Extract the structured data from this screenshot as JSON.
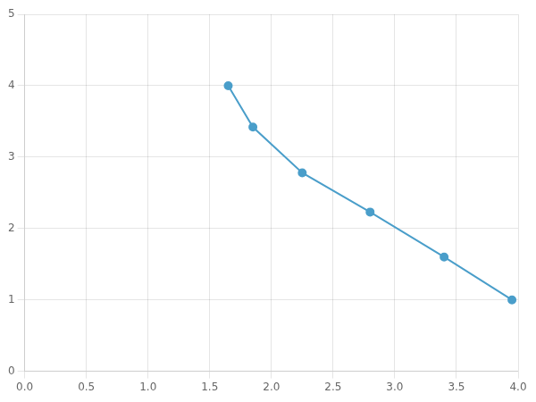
{
  "chart_data": {
    "type": "line",
    "x": [
      1.65,
      1.85,
      2.25,
      2.8,
      3.4,
      3.95
    ],
    "values": [
      4.0,
      3.42,
      2.78,
      2.23,
      1.6,
      1.0
    ],
    "color": "#4a9eca",
    "marker": "circle",
    "xlim": [
      0.0,
      4.0
    ],
    "ylim": [
      0,
      5
    ],
    "xticks": [
      {
        "value": 0.0,
        "label": "0.0"
      },
      0.5,
      {
        "value": 1.0,
        "label": "1.0"
      },
      1.5,
      {
        "value": 2.0,
        "label": "2.0"
      },
      2.5,
      {
        "value": 3.0,
        "label": "3.0"
      },
      3.5,
      {
        "value": 4.0,
        "label": "4.0"
      }
    ],
    "yticks": [
      0,
      1,
      2,
      3,
      4,
      5
    ],
    "grid": true
  }
}
